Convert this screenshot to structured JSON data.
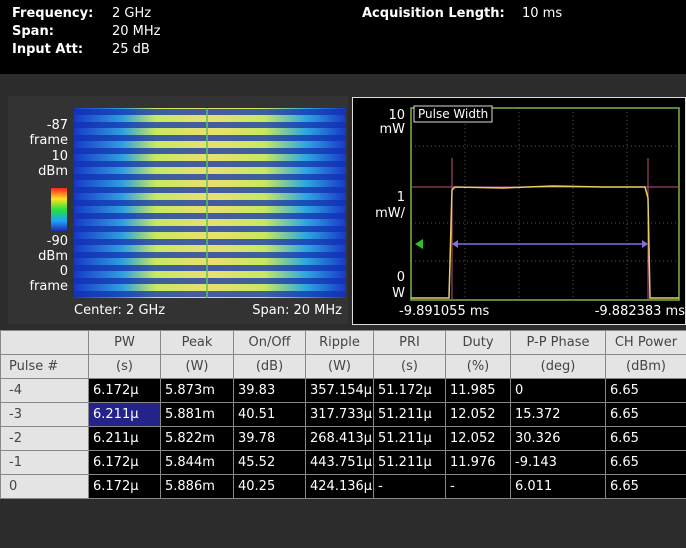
{
  "header": {
    "frequency_label": "Frequency:",
    "frequency_value": "2 GHz",
    "span_label": "Span:",
    "span_value": "20 MHz",
    "input_att_label": "Input Att:",
    "input_att_value": "25 dB",
    "acq_label": "Acquisition Length:",
    "acq_value": "10 ms"
  },
  "spectrogram": {
    "scale_labels": [
      "-87",
      "frame",
      "10",
      "dBm",
      "-90",
      "dBm",
      "0",
      "frame"
    ],
    "center": "Center: 2 GHz",
    "span": "Span: 20 MHz"
  },
  "pulse_plot": {
    "title": "Pulse Width",
    "y_labels": [
      "10",
      "mW",
      "1",
      "mW/",
      "0",
      "W"
    ],
    "x_start": "-9.891055 ms",
    "x_end": "-9.882383 ms"
  },
  "table": {
    "header1": [
      "PW",
      "Peak",
      "On/Off",
      "Ripple",
      "PRI",
      "Duty",
      "P-P Phase",
      "CH Power"
    ],
    "header2": [
      "Pulse #",
      "(s)",
      "(W)",
      "(dB)",
      "(W)",
      "(s)",
      "(%)",
      "(deg)",
      "(dBm)"
    ],
    "rows": [
      [
        "-4",
        "6.172μ",
        "5.873m",
        "39.83",
        "357.154μ",
        "51.172μ",
        "11.985",
        "0",
        "6.65"
      ],
      [
        "-3",
        "6.211μ",
        "5.881m",
        "40.51",
        "317.733μ",
        "51.211μ",
        "12.052",
        "15.372",
        "6.65"
      ],
      [
        "-2",
        "6.211μ",
        "5.822m",
        "39.78",
        "268.413μ",
        "51.211μ",
        "12.052",
        "30.326",
        "6.65"
      ],
      [
        "-1",
        "6.172μ",
        "5.844m",
        "45.52",
        "443.751μ",
        "51.211μ",
        "11.976",
        "-9.143",
        "6.65"
      ],
      [
        "0",
        "6.172μ",
        "5.886m",
        "40.25",
        "424.136μ",
        "-",
        "-",
        "6.011",
        "6.65"
      ]
    ]
  }
}
